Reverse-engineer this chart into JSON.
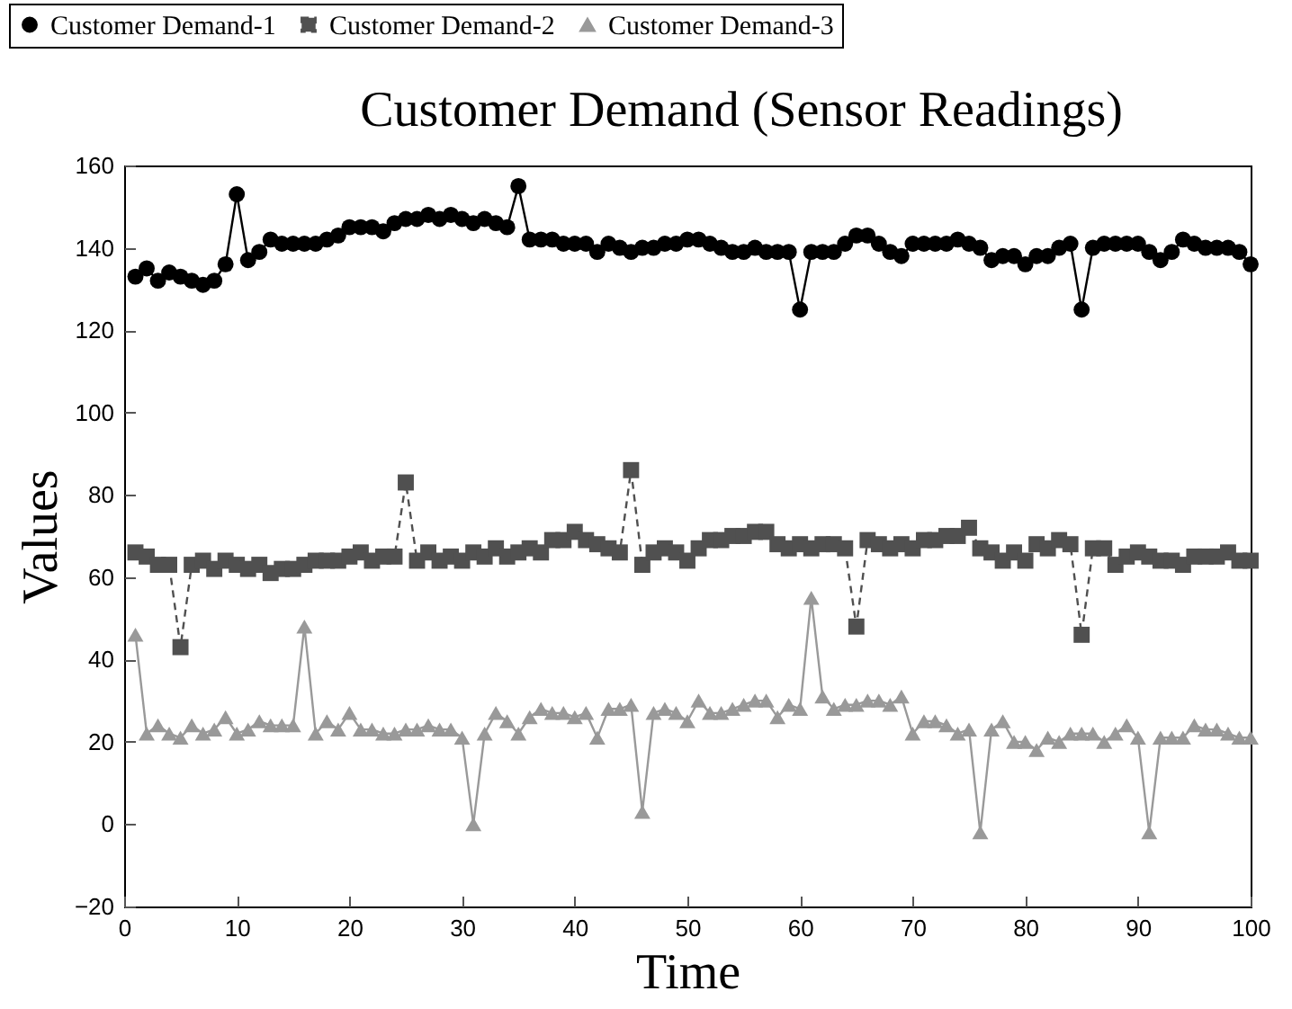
{
  "chart_data": {
    "type": "line",
    "title": "Customer Demand (Sensor Readings)",
    "xlabel": "Time",
    "ylabel": "Values",
    "x": [
      1,
      2,
      3,
      4,
      5,
      6,
      7,
      8,
      9,
      10,
      11,
      12,
      13,
      14,
      15,
      16,
      17,
      18,
      19,
      20,
      21,
      22,
      23,
      24,
      25,
      26,
      27,
      28,
      29,
      30,
      31,
      32,
      33,
      34,
      35,
      36,
      37,
      38,
      39,
      40,
      41,
      42,
      43,
      44,
      45,
      46,
      47,
      48,
      49,
      50,
      51,
      52,
      53,
      54,
      55,
      56,
      57,
      58,
      59,
      60,
      61,
      62,
      63,
      64,
      65,
      66,
      67,
      68,
      69,
      70,
      71,
      72,
      73,
      74,
      75,
      76,
      77,
      78,
      79,
      80,
      81,
      82,
      83,
      84,
      85,
      86,
      87,
      88,
      89,
      90,
      91,
      92,
      93,
      94,
      95,
      96,
      97,
      98,
      99,
      100
    ],
    "series": [
      {
        "name": "Customer Demand-1",
        "color": "#000000",
        "marker": "circle",
        "line_style": "solid",
        "values": [
          133,
          135,
          132,
          134,
          133,
          132,
          131,
          132,
          136,
          153,
          137,
          139,
          142,
          141,
          141,
          141,
          141,
          142,
          143,
          145,
          145,
          145,
          144,
          146,
          147,
          147,
          148,
          147,
          148,
          147,
          146,
          147,
          146,
          145,
          155,
          142,
          142,
          142,
          141,
          141,
          141,
          139,
          141,
          140,
          139,
          140,
          140,
          141,
          141,
          142,
          142,
          141,
          140,
          139,
          139,
          140,
          139,
          139,
          139,
          125,
          139,
          139,
          139,
          141,
          143,
          143,
          141,
          139,
          138,
          141,
          141,
          141,
          141,
          142,
          141,
          140,
          137,
          138,
          138,
          136,
          138,
          138,
          140,
          141,
          125,
          140,
          141,
          141,
          141,
          141,
          139,
          137,
          139,
          142,
          141,
          140,
          140,
          140,
          139,
          136
        ]
      },
      {
        "name": "Customer Demand-2",
        "color": "#505050",
        "marker": "square",
        "line_style": "dashed",
        "values": [
          66,
          65,
          63,
          63,
          43,
          63,
          64,
          62,
          64,
          63,
          62,
          63,
          61,
          62,
          62,
          63,
          64,
          64,
          64,
          65,
          66,
          64,
          65,
          65,
          83,
          64,
          66,
          64,
          65,
          64,
          66,
          65,
          67,
          65,
          66,
          67,
          66,
          69,
          69,
          71,
          69,
          68,
          67,
          66,
          86,
          63,
          66,
          67,
          66,
          64,
          67,
          69,
          69,
          70,
          70,
          71,
          71,
          68,
          67,
          68,
          67,
          68,
          68,
          67,
          48,
          69,
          68,
          67,
          68,
          67,
          69,
          69,
          70,
          70,
          72,
          67,
          66,
          64,
          66,
          64,
          68,
          67,
          69,
          68,
          46,
          67,
          67,
          63,
          65,
          66,
          65,
          64,
          64,
          63,
          65,
          65,
          65,
          66,
          64,
          64
        ]
      },
      {
        "name": "Customer Demand-3",
        "color": "#999999",
        "marker": "triangle",
        "line_style": "solid",
        "values": [
          46,
          22,
          24,
          22,
          21,
          24,
          22,
          23,
          26,
          22,
          23,
          25,
          24,
          24,
          24,
          48,
          22,
          25,
          23,
          27,
          23,
          23,
          22,
          22,
          23,
          23,
          24,
          23,
          23,
          21,
          0,
          22,
          27,
          25,
          22,
          26,
          28,
          27,
          27,
          26,
          27,
          21,
          28,
          28,
          29,
          3,
          27,
          28,
          27,
          25,
          30,
          27,
          27,
          28,
          29,
          30,
          30,
          26,
          29,
          28,
          55,
          31,
          28,
          29,
          29,
          30,
          30,
          29,
          31,
          22,
          25,
          25,
          24,
          22,
          23,
          -2,
          23,
          25,
          20,
          20,
          18,
          21,
          20,
          22,
          22,
          22,
          20,
          22,
          24,
          21,
          -2,
          21,
          21,
          21,
          24,
          23,
          23,
          22,
          21,
          21
        ]
      }
    ],
    "xlim": [
      0,
      100
    ],
    "xticks": [
      0,
      10,
      20,
      30,
      40,
      50,
      60,
      70,
      80,
      90,
      100
    ],
    "ylim": [
      -20,
      160
    ],
    "yticks": [
      -20,
      0,
      20,
      40,
      60,
      80,
      100,
      120,
      140,
      160
    ],
    "grid": false,
    "legend": "top"
  }
}
